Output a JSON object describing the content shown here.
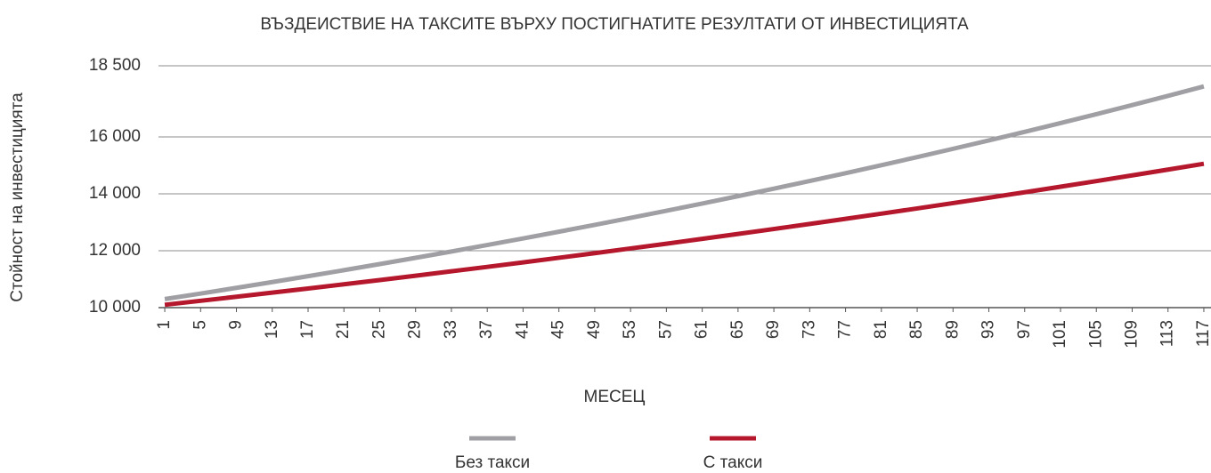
{
  "chart_data": {
    "type": "line",
    "title": "ВЪЗДЕИСТВИЕ НА ТАКСИТЕ ВЪРХУ ПОСТИГНАТИТЕ РЕЗУЛТАТИ ОТ ИНВЕСТИЦИЯТА",
    "xlabel": "МЕСЕЦ",
    "ylabel": "Стойност на инвестицията",
    "x": [
      1,
      5,
      9,
      13,
      17,
      21,
      25,
      29,
      33,
      37,
      41,
      45,
      49,
      53,
      57,
      61,
      65,
      69,
      73,
      77,
      81,
      85,
      89,
      93,
      97,
      101,
      105,
      109,
      113,
      117
    ],
    "xlim": [
      0.3,
      117.8
    ],
    "xticks": [
      1,
      5,
      9,
      13,
      17,
      21,
      25,
      29,
      33,
      37,
      41,
      45,
      49,
      53,
      57,
      61,
      65,
      69,
      73,
      77,
      81,
      85,
      89,
      93,
      97,
      101,
      105,
      109,
      113,
      117
    ],
    "ylim": [
      10000,
      18500
    ],
    "yticks": [
      {
        "value": 10000,
        "label": "10 000"
      },
      {
        "value": 12000,
        "label": "12 000"
      },
      {
        "value": 14000,
        "label": "14 000"
      },
      {
        "value": 16000,
        "label": "16 000"
      },
      {
        "value": 18500,
        "label": "18 500"
      }
    ],
    "grid": true,
    "legend": "bottom",
    "series": [
      {
        "name": "Без такси",
        "color": "#a0a0a4",
        "values": [
          10300,
          10495,
          10695,
          10898,
          11105,
          11316,
          11531,
          11750,
          11973,
          12200,
          12432,
          12668,
          12909,
          13154,
          13404,
          13658,
          13918,
          14182,
          14452,
          14726,
          15006,
          15291,
          15582,
          15878,
          16179,
          16487,
          16800,
          17119,
          17444,
          17776
        ]
      },
      {
        "name": "С такси",
        "color": "#b5172c",
        "values": [
          10100,
          10240,
          10382,
          10526,
          10672,
          10820,
          10970,
          11122,
          11276,
          11432,
          11591,
          11752,
          11915,
          12080,
          12247,
          12417,
          12589,
          12764,
          12941,
          13120,
          13302,
          13487,
          13674,
          13863,
          14055,
          14250,
          14448,
          14648,
          14851,
          15057
        ]
      }
    ]
  }
}
